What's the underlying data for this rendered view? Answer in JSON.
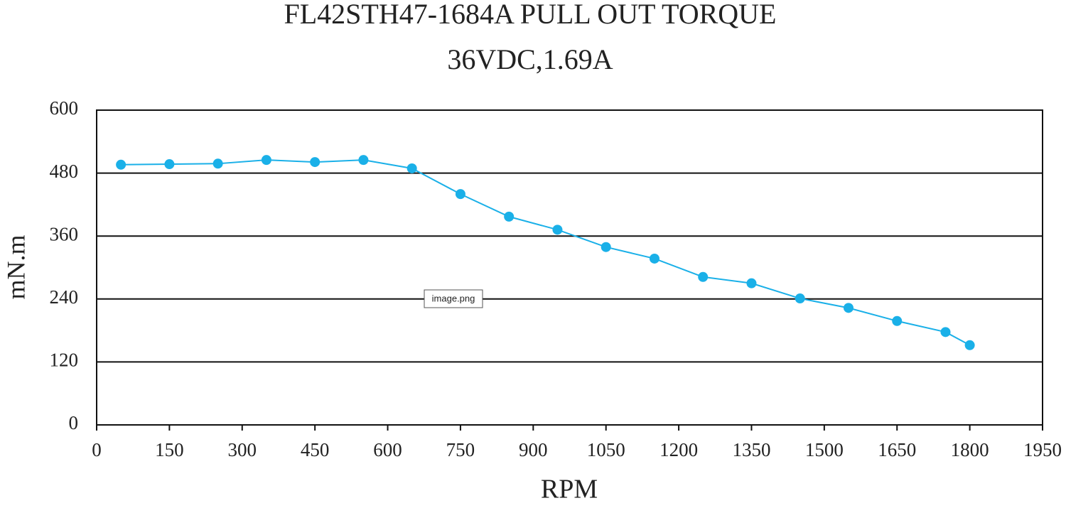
{
  "chart_data": {
    "type": "line",
    "title": "FL42STH47-1684A PULL OUT TORQUE",
    "subtitle": "36VDC,1.69A",
    "x_label": "RPM",
    "y_label": "mN.m",
    "annotation": "image.png",
    "x": [
      50,
      150,
      250,
      350,
      450,
      550,
      650,
      750,
      850,
      950,
      1050,
      1150,
      1250,
      1350,
      1450,
      1550,
      1650,
      1750,
      1800
    ],
    "series": [
      {
        "color": "#1ab0e8",
        "values": [
          496,
          497,
          498,
          505,
          501,
          505,
          489,
          440,
          397,
          372,
          339,
          317,
          282,
          270,
          241,
          223,
          198,
          177,
          152
        ]
      }
    ],
    "xlim": [
      0,
      1950
    ],
    "xticks": [
      0,
      150,
      300,
      450,
      600,
      750,
      900,
      1050,
      1200,
      1350,
      1500,
      1650,
      1800,
      1950
    ],
    "ylim": [
      0,
      600
    ],
    "yticks": [
      0,
      120,
      240,
      360,
      480,
      600
    ],
    "grid": true
  }
}
